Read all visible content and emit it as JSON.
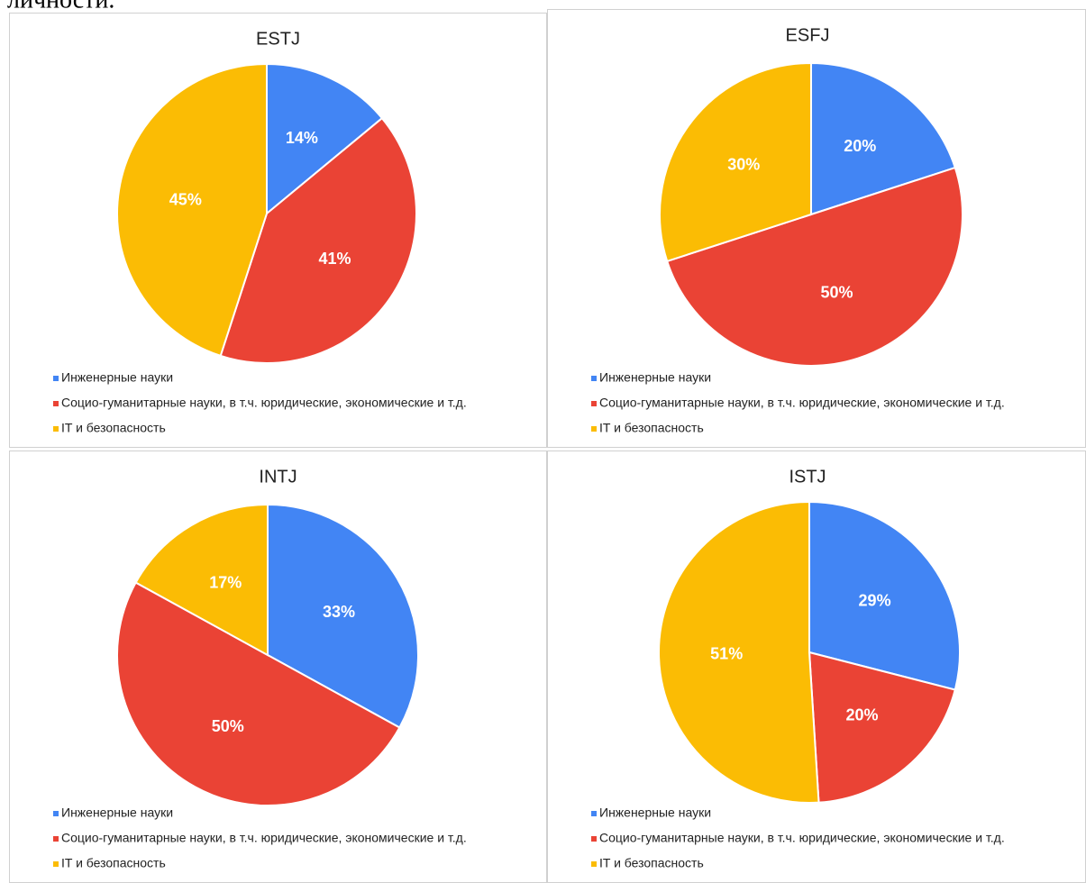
{
  "header": {
    "text": "личности."
  },
  "chart_data": [
    {
      "type": "pie",
      "title": "ESTJ",
      "categories": [
        "Инженерные науки",
        "Социо-гуманитарные науки, в т.ч. юридические, экономические и т.д.",
        "IT и безопасность"
      ],
      "values": [
        14,
        41,
        45
      ],
      "value_labels": [
        "14%",
        "41%",
        "45%"
      ],
      "colors": [
        "#4285f4",
        "#ea4335",
        "#fbbc04"
      ]
    },
    {
      "type": "pie",
      "title": "ESFJ",
      "categories": [
        "Инженерные науки",
        "Социо-гуманитарные науки, в т.ч. юридические, экономические и т.д.",
        "IT и безопасность"
      ],
      "values": [
        20,
        50,
        30
      ],
      "value_labels": [
        "20%",
        "50%",
        "30%"
      ],
      "colors": [
        "#4285f4",
        "#ea4335",
        "#fbbc04"
      ]
    },
    {
      "type": "pie",
      "title": "INTJ",
      "categories": [
        "Инженерные науки",
        "Социо-гуманитарные науки, в т.ч. юридические, экономические и т.д.",
        "IT и безопасность"
      ],
      "values": [
        33,
        50,
        17
      ],
      "value_labels": [
        "33%",
        "50%",
        "17%"
      ],
      "colors": [
        "#4285f4",
        "#ea4335",
        "#fbbc04"
      ]
    },
    {
      "type": "pie",
      "title": "ISTJ",
      "categories": [
        "Инженерные науки",
        "Социо-гуманитарные науки, в т.ч. юридические, экономические и т.д.",
        "IT и безопасность"
      ],
      "values": [
        29,
        20,
        51
      ],
      "value_labels": [
        "29%",
        "20%",
        "51%"
      ],
      "colors": [
        "#4285f4",
        "#ea4335",
        "#fbbc04"
      ]
    }
  ]
}
